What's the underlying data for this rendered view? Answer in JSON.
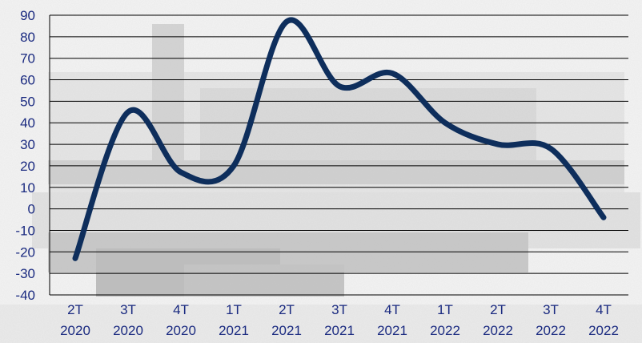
{
  "chart_data": {
    "type": "line",
    "categories": [
      [
        "2T",
        "2020"
      ],
      [
        "3T",
        "2020"
      ],
      [
        "4T",
        "2020"
      ],
      [
        "1T",
        "2021"
      ],
      [
        "2T",
        "2021"
      ],
      [
        "3T",
        "2021"
      ],
      [
        "4T",
        "2021"
      ],
      [
        "1T",
        "2022"
      ],
      [
        "2T",
        "2022"
      ],
      [
        "3T",
        "2022"
      ],
      [
        "4T",
        "2022"
      ]
    ],
    "series": [
      {
        "values": [
          -23,
          45,
          17,
          20,
          87,
          57,
          63,
          40,
          30,
          28,
          -4
        ]
      }
    ],
    "yticks": [
      "90",
      "80",
      "70",
      "60",
      "50",
      "40",
      "30",
      "20",
      "10",
      "0",
      "-10",
      "-20",
      "-30",
      "-40"
    ],
    "ylim": [
      -40,
      90
    ],
    "ystep": 10,
    "grid": true,
    "legend": "none",
    "title": "",
    "xlabel": "",
    "ylabel": "",
    "colors": {
      "line": "#0e2e5c",
      "tick_text": "#1a2a80",
      "grid": "#000000"
    }
  }
}
